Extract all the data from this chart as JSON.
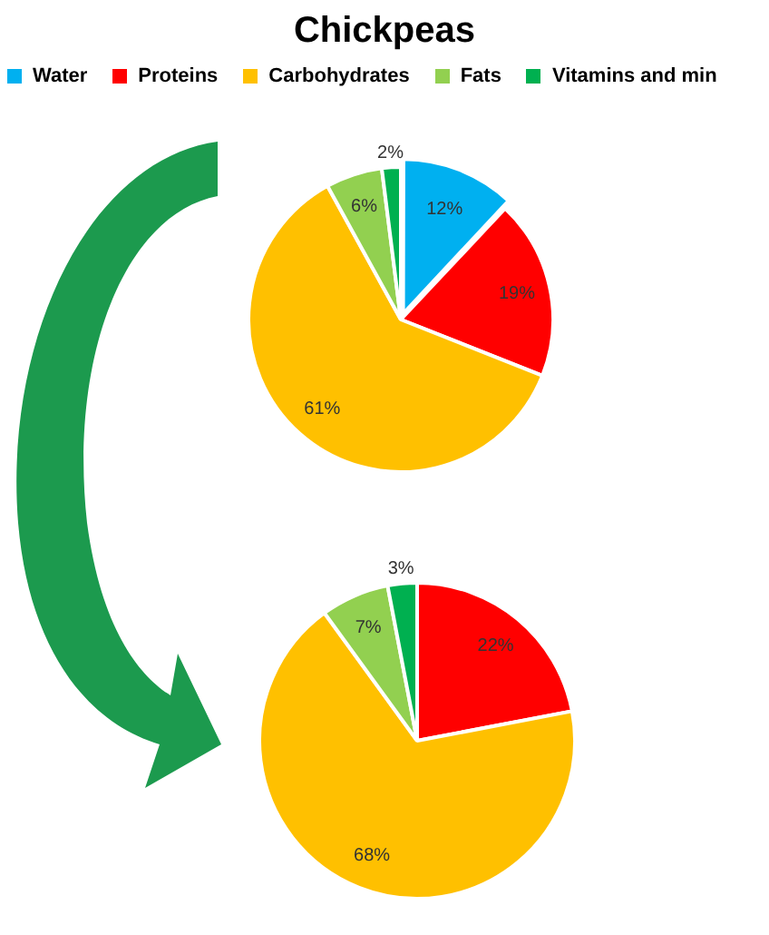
{
  "chart_data": [
    {
      "type": "pie",
      "title": "Chickpeas",
      "categories": [
        "Water",
        "Proteins",
        "Carbohydrates",
        "Fats",
        "Vitamins and min"
      ],
      "values": [
        12,
        19,
        61,
        6,
        2
      ],
      "colors": [
        "#00b0f0",
        "#ff0000",
        "#ffc000",
        "#92d050",
        "#00b050"
      ],
      "value_labels": [
        "12%",
        "19%",
        "61%",
        "6%",
        "2%"
      ],
      "legend": "top"
    },
    {
      "type": "pie",
      "categories": [
        null,
        null,
        null,
        null
      ],
      "values": [
        22,
        68,
        7,
        3
      ],
      "colors": [
        "#ff0000",
        "#ffc000",
        "#92d050",
        "#00b050"
      ],
      "value_labels": [
        "22%",
        "68%",
        "7%",
        "3%"
      ]
    }
  ]
}
